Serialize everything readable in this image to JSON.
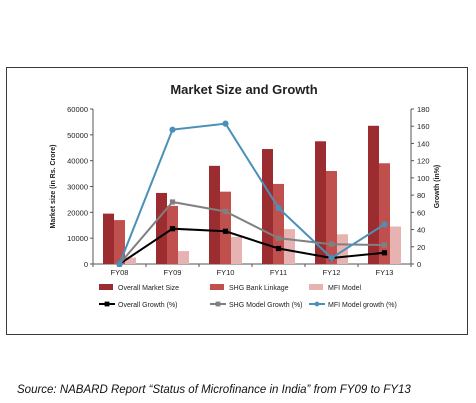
{
  "chart_data": {
    "type": "bar",
    "title": "Market Size and Growth",
    "ylabel": "Market size (in Rs. Crore)",
    "y2label": "Growth (in%)",
    "categories": [
      "FY08",
      "FY09",
      "FY10",
      "FY11",
      "FY12",
      "FY13"
    ],
    "ylim": [
      0,
      60000
    ],
    "yticks": [
      0,
      10000,
      20000,
      30000,
      40000,
      50000,
      60000
    ],
    "y2lim": [
      0,
      180
    ],
    "y2ticks": [
      0,
      20,
      40,
      60,
      80,
      100,
      120,
      140,
      160,
      180
    ],
    "series": [
      {
        "name": "Overall Market Size",
        "kind": "bar",
        "axis": "left",
        "color": "#9b2d30",
        "values": [
          19500,
          27500,
          38000,
          44500,
          47500,
          53500
        ]
      },
      {
        "name": "SHG Bank Linkage",
        "kind": "bar",
        "axis": "left",
        "color": "#c0504d",
        "values": [
          17000,
          22500,
          28000,
          31000,
          36000,
          39000
        ]
      },
      {
        "name": "MFI Model",
        "kind": "bar",
        "axis": "left",
        "color": "#e6b3b2",
        "values": [
          2500,
          5000,
          10500,
          13500,
          11500,
          14500
        ]
      },
      {
        "name": "Overall Growth  (%)",
        "kind": "line",
        "axis": "right",
        "color": "#000000",
        "marker": "square",
        "values": [
          0,
          41,
          38,
          18,
          7,
          13
        ]
      },
      {
        "name": "SHG Model Growth (%)",
        "kind": "line",
        "axis": "right",
        "color": "#808080",
        "marker": "square",
        "values": [
          0,
          72,
          61,
          30,
          23,
          22
        ]
      },
      {
        "name": "MFI Model growth (%)",
        "kind": "line",
        "axis": "right",
        "color": "#4a90b8",
        "marker": "circle",
        "values": [
          0,
          156,
          163,
          65,
          7,
          46
        ]
      }
    ],
    "legend_position": "bottom"
  },
  "source": {
    "prefix": "Source: NABARD Report ",
    "report": "“Status of Microfinance in India”",
    "suffix": " from FY09 to FY13"
  }
}
